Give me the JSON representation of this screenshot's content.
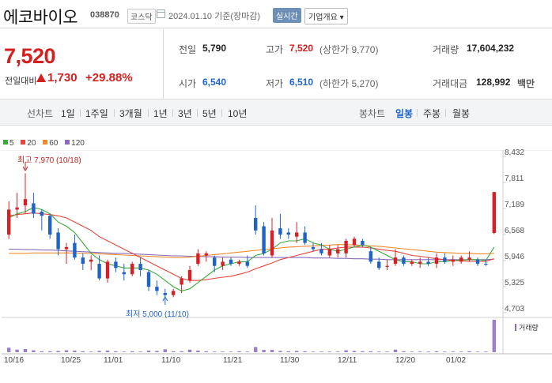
{
  "header": {
    "name": "에코바이오",
    "code": "038870",
    "market": "코스닥",
    "date": "2024.01.10 기준(장마감)",
    "realtime": "실시간",
    "overview": "기업개요 ▾"
  },
  "price": {
    "current": "7,520",
    "change_label": "전일대비",
    "change": "1,730",
    "rate": "+29.88%"
  },
  "quote": {
    "prev_label": "전일",
    "prev": "5,790",
    "high_label": "고가",
    "high": "7,520",
    "high_sub": "(상한가 9,770)",
    "volume_label": "거래량",
    "volume": "17,604,232",
    "open_label": "시가",
    "open": "6,540",
    "low_label": "저가",
    "low": "6,510",
    "low_sub": "(하한가 5,270)",
    "amount_label": "거래대금",
    "amount": "128,992",
    "amount_unit": "백만"
  },
  "periods": {
    "line_title": "선차트",
    "line_items": [
      "1일",
      "1주일",
      "3개월",
      "1년",
      "3년",
      "5년",
      "10년"
    ],
    "candle_title": "봉차트",
    "candle_items": [
      "일봉",
      "주봉",
      "월봉"
    ],
    "candle_active": 0
  },
  "colors": {
    "up": "#d81f26",
    "down": "#1f63c6",
    "ma5": "#3caa3c",
    "ma20": "#e8453c",
    "ma60": "#ef8a2a",
    "ma120": "#8a6bbd"
  },
  "chart_data": {
    "type": "candlestick",
    "legend": [
      {
        "name": "5",
        "color": "#3caa3c"
      },
      {
        "name": "20",
        "color": "#e8453c"
      },
      {
        "name": "60",
        "color": "#ef8a2a"
      },
      {
        "name": "120",
        "color": "#8a6bbd"
      }
    ],
    "y_ticks": [
      "8,432",
      "7,811",
      "7,189",
      "6,568",
      "5,946",
      "5,325",
      "4,703"
    ],
    "ylim": [
      4703,
      8432
    ],
    "x_ticks": [
      "10/16",
      "10/25",
      "11/01",
      "11/10",
      "11/21",
      "11/30",
      "12/11",
      "12/20",
      "01/02"
    ],
    "annotations": {
      "high": "최고 7,970 (10/18)",
      "low": "최저 5,000 (11/10)"
    },
    "volume_label": "거래량",
    "candles": [
      {
        "d": "10/16",
        "o": 6500,
        "h": 7300,
        "l": 6400,
        "c": 7100
      },
      {
        "d": "10/17",
        "o": 7100,
        "h": 7500,
        "l": 6900,
        "c": 7150
      },
      {
        "d": "10/18",
        "o": 7200,
        "h": 7970,
        "l": 7000,
        "c": 7350
      },
      {
        "d": "10/19",
        "o": 7250,
        "h": 7500,
        "l": 6900,
        "c": 7000
      },
      {
        "d": "10/20",
        "o": 7050,
        "h": 7100,
        "l": 6600,
        "c": 6950
      },
      {
        "d": "10/23",
        "o": 6950,
        "h": 7000,
        "l": 6400,
        "c": 6500
      },
      {
        "d": "10/24",
        "o": 6550,
        "h": 6650,
        "l": 6000,
        "c": 6150
      },
      {
        "d": "10/25",
        "o": 6150,
        "h": 6300,
        "l": 5800,
        "c": 6200
      },
      {
        "d": "10/26",
        "o": 6300,
        "h": 6500,
        "l": 5900,
        "c": 5950
      },
      {
        "d": "10/27",
        "o": 5950,
        "h": 6050,
        "l": 5650,
        "c": 5800
      },
      {
        "d": "10/30",
        "o": 5850,
        "h": 6000,
        "l": 5650,
        "c": 5900
      },
      {
        "d": "10/31",
        "o": 5800,
        "h": 6000,
        "l": 5400,
        "c": 5450
      },
      {
        "d": "11/01",
        "o": 5450,
        "h": 5900,
        "l": 5350,
        "c": 5850
      },
      {
        "d": "11/02",
        "o": 5850,
        "h": 5950,
        "l": 5600,
        "c": 5700
      },
      {
        "d": "11/03",
        "o": 5600,
        "h": 5800,
        "l": 5400,
        "c": 5550
      },
      {
        "d": "11/06",
        "o": 5550,
        "h": 5850,
        "l": 5500,
        "c": 5800
      },
      {
        "d": "11/07",
        "o": 5800,
        "h": 5950,
        "l": 5500,
        "c": 5650
      },
      {
        "d": "11/08",
        "o": 5600,
        "h": 5650,
        "l": 5150,
        "c": 5250
      },
      {
        "d": "11/09",
        "o": 5250,
        "h": 5400,
        "l": 5050,
        "c": 5150
      },
      {
        "d": "11/10",
        "o": 5100,
        "h": 5200,
        "l": 5000,
        "c": 5050
      },
      {
        "d": "11/13",
        "o": 5050,
        "h": 5200,
        "l": 5000,
        "c": 5150
      },
      {
        "d": "11/14",
        "o": 5300,
        "h": 5500,
        "l": 5100,
        "c": 5450
      },
      {
        "d": "11/15",
        "o": 5400,
        "h": 5750,
        "l": 5350,
        "c": 5650
      },
      {
        "d": "11/16",
        "o": 5800,
        "h": 6150,
        "l": 5750,
        "c": 6050
      },
      {
        "d": "11/17",
        "o": 6000,
        "h": 6100,
        "l": 5850,
        "c": 6050
      },
      {
        "d": "11/20",
        "o": 5950,
        "h": 6000,
        "l": 5600,
        "c": 5750
      },
      {
        "d": "11/21",
        "o": 5750,
        "h": 5950,
        "l": 5650,
        "c": 5850
      },
      {
        "d": "11/22",
        "o": 5900,
        "h": 5950,
        "l": 5750,
        "c": 5800
      },
      {
        "d": "11/23",
        "o": 5800,
        "h": 5900,
        "l": 5750,
        "c": 5850
      },
      {
        "d": "11/24",
        "o": 5850,
        "h": 6000,
        "l": 5700,
        "c": 5750
      },
      {
        "d": "11/27",
        "o": 6900,
        "h": 7200,
        "l": 6500,
        "c": 6600
      },
      {
        "d": "11/28",
        "o": 6700,
        "h": 6800,
        "l": 6000,
        "c": 6050
      },
      {
        "d": "11/29",
        "o": 6000,
        "h": 6900,
        "l": 5950,
        "c": 6600
      },
      {
        "d": "11/30",
        "o": 6650,
        "h": 7000,
        "l": 6400,
        "c": 6500
      },
      {
        "d": "12/01",
        "o": 6550,
        "h": 6650,
        "l": 6400,
        "c": 6500
      },
      {
        "d": "12/04",
        "o": 6450,
        "h": 6800,
        "l": 6300,
        "c": 6550
      },
      {
        "d": "12/05",
        "o": 6550,
        "h": 6700,
        "l": 6250,
        "c": 6300
      },
      {
        "d": "12/06",
        "o": 6200,
        "h": 6300,
        "l": 6100,
        "c": 6150
      },
      {
        "d": "12/07",
        "o": 6150,
        "h": 6300,
        "l": 6000,
        "c": 6050
      },
      {
        "d": "12/08",
        "o": 6000,
        "h": 6250,
        "l": 5950,
        "c": 6150
      },
      {
        "d": "12/11",
        "o": 6050,
        "h": 6250,
        "l": 5950,
        "c": 6150
      },
      {
        "d": "12/12",
        "o": 6050,
        "h": 6400,
        "l": 5950,
        "c": 6350
      },
      {
        "d": "12/13",
        "o": 6250,
        "h": 6450,
        "l": 6200,
        "c": 6400
      },
      {
        "d": "12/14",
        "o": 6350,
        "h": 6400,
        "l": 6200,
        "c": 6250
      },
      {
        "d": "12/15",
        "o": 6100,
        "h": 6200,
        "l": 5800,
        "c": 5850
      },
      {
        "d": "12/18",
        "o": 5850,
        "h": 5950,
        "l": 5650,
        "c": 5700
      },
      {
        "d": "12/19",
        "o": 5750,
        "h": 5900,
        "l": 5650,
        "c": 5750
      },
      {
        "d": "12/20",
        "o": 5800,
        "h": 6150,
        "l": 5750,
        "c": 5950
      },
      {
        "d": "12/21",
        "o": 5950,
        "h": 6000,
        "l": 5750,
        "c": 5800
      },
      {
        "d": "12/22",
        "o": 5800,
        "h": 5900,
        "l": 5750,
        "c": 5850
      },
      {
        "d": "12/26",
        "o": 5800,
        "h": 5950,
        "l": 5700,
        "c": 5850
      },
      {
        "d": "12/27",
        "o": 5850,
        "h": 5950,
        "l": 5750,
        "c": 5800
      },
      {
        "d": "12/28",
        "o": 5800,
        "h": 6050,
        "l": 5700,
        "c": 5950
      },
      {
        "d": "01/02",
        "o": 5950,
        "h": 6050,
        "l": 5800,
        "c": 5850
      },
      {
        "d": "01/03",
        "o": 5850,
        "h": 6000,
        "l": 5750,
        "c": 5900
      },
      {
        "d": "01/04",
        "o": 5850,
        "h": 6000,
        "l": 5800,
        "c": 5950
      },
      {
        "d": "01/05",
        "o": 5900,
        "h": 6100,
        "l": 5850,
        "c": 5950
      },
      {
        "d": "01/08",
        "o": 5900,
        "h": 5950,
        "l": 5750,
        "c": 5800
      },
      {
        "d": "01/09",
        "o": 5800,
        "h": 5900,
        "l": 5750,
        "c": 5790
      },
      {
        "d": "01/10",
        "o": 6540,
        "h": 7520,
        "l": 6510,
        "c": 7520
      }
    ],
    "volumes": [
      0.14,
      0.08,
      0.1,
      0.06,
      0.03,
      0.03,
      0.04,
      0.06,
      0.05,
      0.03,
      0.02,
      0.04,
      0.05,
      0.03,
      0.02,
      0.03,
      0.02,
      0.05,
      0.04,
      0.09,
      0.03,
      0.03,
      0.08,
      0.05,
      0.03,
      0.02,
      0.02,
      0.02,
      0.03,
      0.02,
      0.16,
      0.07,
      0.07,
      0.04,
      0.03,
      0.04,
      0.03,
      0.02,
      0.02,
      0.02,
      0.02,
      0.06,
      0.04,
      0.03,
      0.03,
      0.02,
      0.02,
      0.08,
      0.03,
      0.02,
      0.02,
      0.02,
      0.03,
      0.02,
      0.02,
      0.02,
      0.03,
      0.02,
      0.02,
      1.0
    ],
    "ma5": [
      6900,
      7000,
      7050,
      7150,
      7100,
      7000,
      6800,
      6700,
      6550,
      6300,
      6050,
      5900,
      5800,
      5750,
      5700,
      5700,
      5700,
      5650,
      5550,
      5400,
      5250,
      5150,
      5200,
      5350,
      5500,
      5650,
      5750,
      5800,
      5850,
      5850,
      6000,
      6050,
      6150,
      6300,
      6350,
      6350,
      6400,
      6300,
      6250,
      6150,
      6100,
      6150,
      6200,
      6250,
      6200,
      6100,
      6000,
      5900,
      5850,
      5850,
      5800,
      5800,
      5850,
      5850,
      5880,
      5890,
      5900,
      5900,
      5880,
      6200
    ],
    "ma20": [
      6950,
      6980,
      7000,
      7020,
      7000,
      6980,
      6950,
      6900,
      6800,
      6700,
      6600,
      6450,
      6350,
      6250,
      6150,
      6050,
      5950,
      5850,
      5750,
      5650,
      5550,
      5450,
      5400,
      5400,
      5420,
      5450,
      5480,
      5500,
      5550,
      5600,
      5680,
      5750,
      5820,
      5900,
      5950,
      6000,
      6050,
      6100,
      6150,
      6150,
      6180,
      6200,
      6200,
      6200,
      6180,
      6150,
      6120,
      6100,
      6050,
      6000,
      5980,
      5950,
      5920,
      5900,
      5880,
      5870,
      5860,
      5860,
      5860,
      5920
    ],
    "ma60": [
      6050,
      6050,
      6050,
      6060,
      6060,
      6060,
      6060,
      6060,
      6060,
      6050,
      6050,
      6040,
      6030,
      6020,
      6010,
      6000,
      5990,
      5980,
      5970,
      5960,
      5950,
      5950,
      5960,
      5980,
      6000,
      6020,
      6040,
      6060,
      6080,
      6100,
      6120,
      6140,
      6160,
      6180,
      6200,
      6210,
      6220,
      6230,
      6240,
      6250,
      6260,
      6260,
      6250,
      6240,
      6230,
      6220,
      6200,
      6180,
      6160,
      6140,
      6120,
      6100,
      6080,
      6070,
      6060,
      6050,
      6050,
      6040,
      6040,
      6050
    ],
    "ma120": [
      6150,
      6150,
      6140,
      6140,
      6130,
      6130,
      6120,
      6110,
      6100,
      6090,
      6080,
      6070,
      6060,
      6050,
      6050,
      6040,
      6030,
      6020,
      6010,
      6000,
      5990,
      5990,
      5980,
      5980,
      5970,
      5970,
      5960,
      5960,
      5960,
      5950,
      5950,
      5950,
      5950,
      5950,
      5950,
      5950,
      5950,
      5940,
      5940,
      5940,
      5930,
      5930,
      5920,
      5920,
      5910,
      5910,
      5900,
      5900,
      5900,
      5900,
      5900,
      5900,
      5900,
      5900,
      5900,
      5900,
      5900,
      5900,
      5900,
      5910
    ]
  }
}
